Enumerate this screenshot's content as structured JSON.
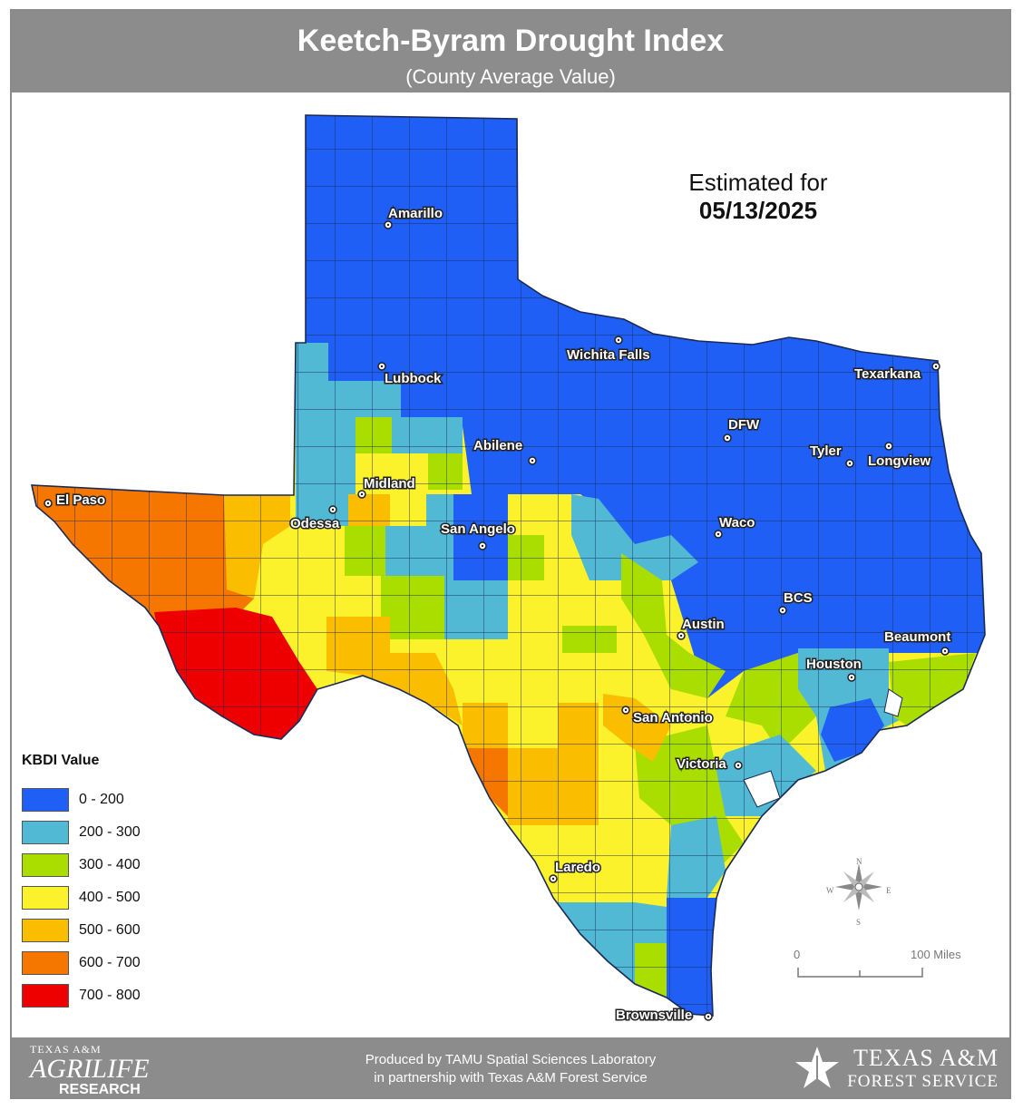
{
  "header": {
    "title": "Keetch-Byram Drought Index",
    "subtitle": "(County Average Value)"
  },
  "estimate": {
    "label": "Estimated for",
    "date": "05/13/2025"
  },
  "legend": {
    "title": "KBDI Value",
    "items": [
      {
        "label": "0 - 200",
        "color": "#1f5ff5"
      },
      {
        "label": "200 - 300",
        "color": "#52b9d4"
      },
      {
        "label": "300 - 400",
        "color": "#aadd00"
      },
      {
        "label": "400 - 500",
        "color": "#fbf22c"
      },
      {
        "label": "500 - 600",
        "color": "#fbbd00"
      },
      {
        "label": "600 - 700",
        "color": "#f57700"
      },
      {
        "label": "700 - 800",
        "color": "#ee0000"
      }
    ]
  },
  "cities": [
    {
      "name": "Amarillo"
    },
    {
      "name": "Lubbock"
    },
    {
      "name": "Wichita Falls"
    },
    {
      "name": "Texarkana"
    },
    {
      "name": "DFW"
    },
    {
      "name": "Tyler"
    },
    {
      "name": "Longview"
    },
    {
      "name": "Abilene"
    },
    {
      "name": "Midland"
    },
    {
      "name": "Odessa"
    },
    {
      "name": "El Paso"
    },
    {
      "name": "San Angelo"
    },
    {
      "name": "Waco"
    },
    {
      "name": "BCS"
    },
    {
      "name": "Austin"
    },
    {
      "name": "Beaumont"
    },
    {
      "name": "Houston"
    },
    {
      "name": "San Antonio"
    },
    {
      "name": "Victoria"
    },
    {
      "name": "Laredo"
    },
    {
      "name": "Brownsville"
    }
  ],
  "compass": {
    "n": "N",
    "s": "S",
    "e": "E",
    "w": "W"
  },
  "scale": {
    "start": "0",
    "end": "100 Miles"
  },
  "footer": {
    "line1": "Produced by TAMU Spatial Sciences Laboratory",
    "line2": "in partnership with Texas A&M Forest Service",
    "agrilife_top": "TEXAS A&M",
    "agrilife_main": "AGRILIFE",
    "agrilife_sub": "RESEARCH",
    "forest_main": "TEXAS A&M",
    "forest_sub": "FOREST SERVICE"
  }
}
